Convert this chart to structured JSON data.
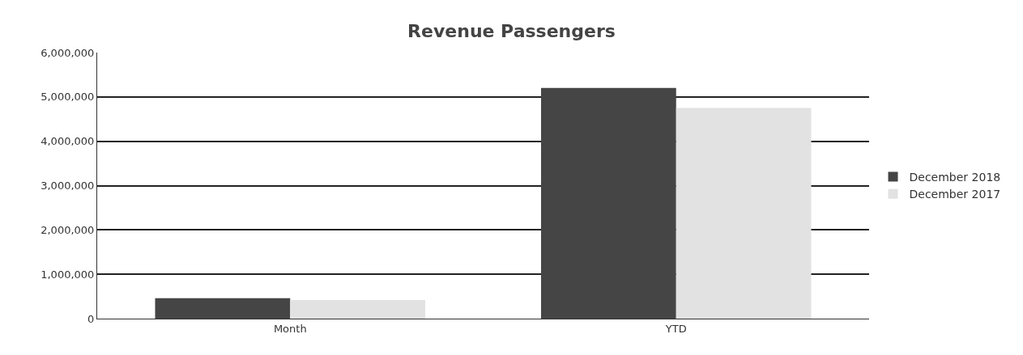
{
  "chart_data": {
    "type": "bar",
    "title": "Revenue Passengers",
    "categories": [
      "Month",
      "YTD"
    ],
    "series": [
      {
        "name": "December 2018",
        "color": "#454545",
        "values": [
          460000,
          5200000
        ]
      },
      {
        "name": "December 2017",
        "color": "#e2e2e2",
        "values": [
          420000,
          4750000
        ]
      }
    ],
    "ylim": [
      0,
      6000000
    ],
    "yticks": [
      {
        "value": 0,
        "label": "0"
      },
      {
        "value": 1000000,
        "label": "1,000,000"
      },
      {
        "value": 2000000,
        "label": "2,000,000"
      },
      {
        "value": 3000000,
        "label": "3,000,000"
      },
      {
        "value": 4000000,
        "label": "4,000,000"
      },
      {
        "value": 5000000,
        "label": "5,000,000"
      },
      {
        "value": 6000000,
        "label": "6,000,000"
      }
    ],
    "grid": "y",
    "legend": "right"
  }
}
